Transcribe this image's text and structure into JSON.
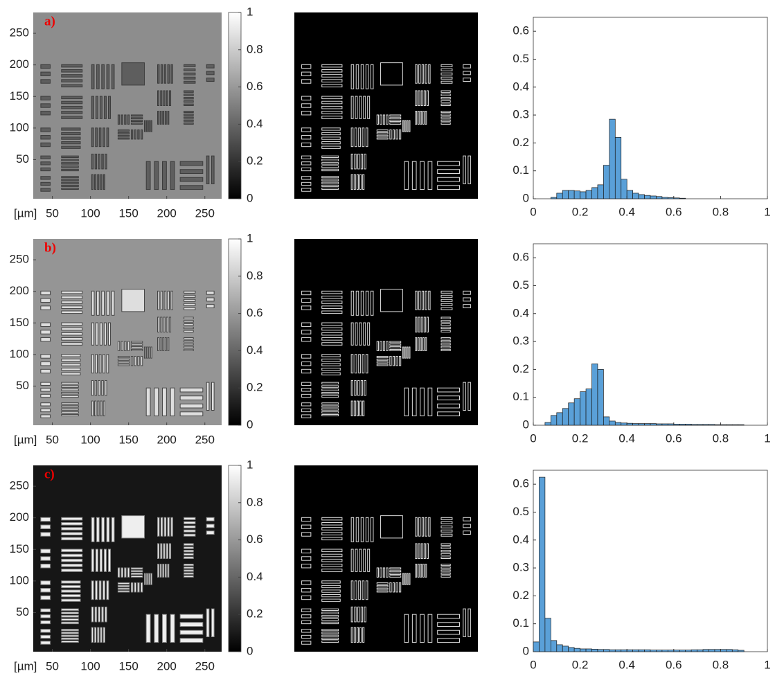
{
  "chart_data": [
    {
      "type": "image",
      "panel_label": "a)",
      "xlabel": "[µm]",
      "xlim": [
        25,
        272
      ],
      "ylim": [
        -12,
        283
      ],
      "xticks": [
        50,
        100,
        150,
        200,
        250
      ],
      "yticks": [
        50,
        100,
        150,
        200,
        250
      ],
      "colorbar": {
        "lim": [
          0,
          1
        ],
        "ticks": [
          0,
          0.2,
          0.4,
          0.6,
          0.8,
          1
        ]
      }
    },
    {
      "type": "histogram",
      "color": "#5aa0d8",
      "xlim": [
        0,
        1
      ],
      "ylim": [
        0,
        0.65
      ],
      "xticks": [
        0,
        0.2,
        0.4,
        0.6,
        0.8,
        1
      ],
      "yticks": [
        0,
        0.1,
        0.2,
        0.3,
        0.4,
        0.5,
        0.6
      ],
      "bins": [
        0.075,
        0.1,
        0.125,
        0.15,
        0.175,
        0.2,
        0.225,
        0.25,
        0.275,
        0.3,
        0.325,
        0.35,
        0.375,
        0.4,
        0.425,
        0.45,
        0.475,
        0.5,
        0.525,
        0.55,
        0.575,
        0.6,
        0.625,
        0.65
      ],
      "values": [
        0.005,
        0.02,
        0.03,
        0.03,
        0.028,
        0.025,
        0.03,
        0.04,
        0.05,
        0.12,
        0.285,
        0.22,
        0.07,
        0.03,
        0.02,
        0.015,
        0.012,
        0.01,
        0.008,
        0.005,
        0.004,
        0.003,
        0.002
      ]
    },
    {
      "type": "image",
      "panel_label": "b)",
      "xlabel": "[µm]",
      "xlim": [
        25,
        272
      ],
      "ylim": [
        -12,
        283
      ],
      "xticks": [
        50,
        100,
        150,
        200,
        250
      ],
      "yticks": [
        50,
        100,
        150,
        200,
        250
      ],
      "colorbar": {
        "lim": [
          0,
          1
        ],
        "ticks": [
          0,
          0.2,
          0.4,
          0.6,
          0.8,
          1
        ]
      }
    },
    {
      "type": "histogram",
      "color": "#5aa0d8",
      "xlim": [
        0,
        1
      ],
      "ylim": [
        0,
        0.65
      ],
      "xticks": [
        0,
        0.2,
        0.4,
        0.6,
        0.8,
        1
      ],
      "yticks": [
        0,
        0.1,
        0.2,
        0.3,
        0.4,
        0.5,
        0.6
      ],
      "bins": [
        0.05,
        0.075,
        0.1,
        0.125,
        0.15,
        0.175,
        0.2,
        0.225,
        0.25,
        0.275,
        0.3,
        0.325,
        0.35,
        0.375,
        0.4,
        0.425,
        0.45,
        0.475,
        0.5,
        0.525,
        0.55,
        0.575,
        0.6,
        0.625,
        0.65,
        0.675,
        0.7,
        0.725,
        0.75,
        0.775,
        0.8,
        0.825,
        0.85,
        0.875,
        0.9
      ],
      "values": [
        0.01,
        0.035,
        0.045,
        0.06,
        0.08,
        0.095,
        0.12,
        0.13,
        0.22,
        0.2,
        0.03,
        0.015,
        0.01,
        0.008,
        0.007,
        0.006,
        0.006,
        0.006,
        0.006,
        0.005,
        0.005,
        0.005,
        0.004,
        0.004,
        0.004,
        0.003,
        0.003,
        0.003,
        0.003,
        0.002,
        0.002,
        0.002,
        0.002,
        0.002
      ]
    },
    {
      "type": "image",
      "panel_label": "c)",
      "xlabel": "[µm]",
      "xlim": [
        25,
        272
      ],
      "ylim": [
        -12,
        283
      ],
      "xticks": [
        50,
        100,
        150,
        200,
        250
      ],
      "yticks": [
        50,
        100,
        150,
        200,
        250
      ],
      "colorbar": {
        "lim": [
          0,
          1
        ],
        "ticks": [
          0,
          0.2,
          0.4,
          0.6,
          0.8,
          1
        ]
      }
    },
    {
      "type": "histogram",
      "color": "#5aa0d8",
      "xlim": [
        0,
        1
      ],
      "ylim": [
        0,
        0.65
      ],
      "xticks": [
        0,
        0.2,
        0.4,
        0.6,
        0.8,
        1
      ],
      "yticks": [
        0,
        0.1,
        0.2,
        0.3,
        0.4,
        0.5,
        0.6
      ],
      "bins": [
        0,
        0.025,
        0.05,
        0.075,
        0.1,
        0.125,
        0.15,
        0.175,
        0.2,
        0.225,
        0.25,
        0.275,
        0.3,
        0.325,
        0.35,
        0.375,
        0.4,
        0.425,
        0.45,
        0.475,
        0.5,
        0.525,
        0.55,
        0.575,
        0.6,
        0.625,
        0.65,
        0.675,
        0.7,
        0.725,
        0.75,
        0.775,
        0.8,
        0.825,
        0.85,
        0.875,
        0.9
      ],
      "values": [
        0.035,
        0.625,
        0.12,
        0.04,
        0.025,
        0.02,
        0.015,
        0.012,
        0.01,
        0.01,
        0.009,
        0.008,
        0.008,
        0.007,
        0.007,
        0.007,
        0.007,
        0.007,
        0.007,
        0.007,
        0.006,
        0.006,
        0.006,
        0.006,
        0.006,
        0.006,
        0.006,
        0.007,
        0.007,
        0.008,
        0.008,
        0.008,
        0.008,
        0.008,
        0.007,
        0.005
      ]
    }
  ]
}
